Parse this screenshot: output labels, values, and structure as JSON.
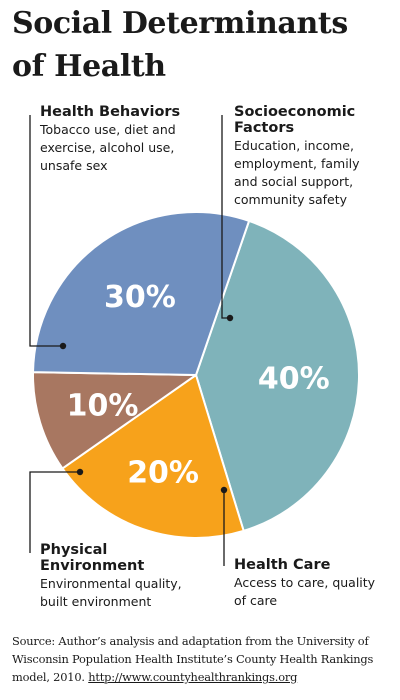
{
  "title_lines": [
    "Social Determinants",
    "of Health"
  ],
  "categories": [
    {
      "heading_lines": [
        "Health Behaviors"
      ],
      "description_lines": [
        "Tobacco use, diet and",
        "exercise, alcohol use,",
        "unsafe sex"
      ]
    },
    {
      "heading_lines": [
        "Socioeconomic",
        "Factors"
      ],
      "description_lines": [
        "Education, income,",
        "employment, family",
        "and social support,",
        "community safety"
      ]
    },
    {
      "heading_lines": [
        "Physical",
        "Environment"
      ],
      "description_lines": [
        "Environmental quality,",
        "built environment"
      ]
    },
    {
      "heading_lines": [
        "Health Care"
      ],
      "description_lines": [
        "Access to care, quality",
        "of care"
      ]
    }
  ],
  "chart_data": {
    "type": "pie",
    "slices": [
      {
        "label": "Socioeconomic Factors",
        "value": 40,
        "display": "40%",
        "color": "#7fb3ba"
      },
      {
        "label": "Health Care",
        "value": 20,
        "display": "20%",
        "color": "#f7a21b"
      },
      {
        "label": "Physical Environment",
        "value": 10,
        "display": "10%",
        "color": "#a87761"
      },
      {
        "label": "Health Behaviors",
        "value": 30,
        "display": "30%",
        "color": "#6f8fbf"
      }
    ]
  },
  "source": {
    "text": "Source: Author’s analysis and adaptation from the University of Wisconsin Population Health Institute’s County Health Rankings model, 2010.",
    "url": "http://www.countyhealthrankings.org"
  }
}
